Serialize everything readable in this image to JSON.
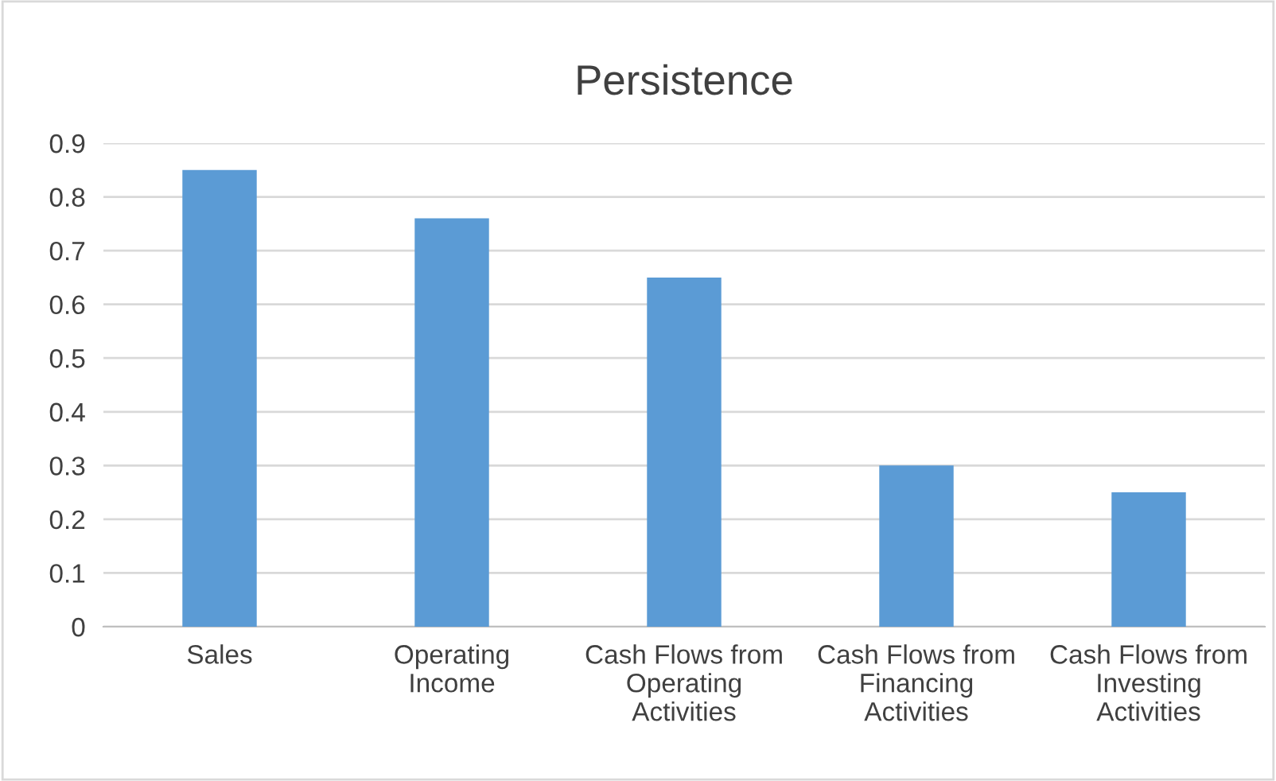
{
  "chart_data": {
    "type": "bar",
    "title": "Persistence",
    "categories": [
      "Sales",
      "Operating\nIncome",
      "Cash Flows from\nOperating\nActivities",
      "Cash Flows from\nFinancing\nActivities",
      "Cash Flows from\nInvesting\nActivities"
    ],
    "values": [
      0.85,
      0.76,
      0.65,
      0.3,
      0.25
    ],
    "color": "#5b9bd5",
    "ylim": [
      0,
      0.9
    ],
    "yticks": [
      0,
      0.1,
      0.2,
      0.3,
      0.4,
      0.5,
      0.6,
      0.7,
      0.8,
      0.9
    ],
    "grid": "y",
    "legend": false
  }
}
